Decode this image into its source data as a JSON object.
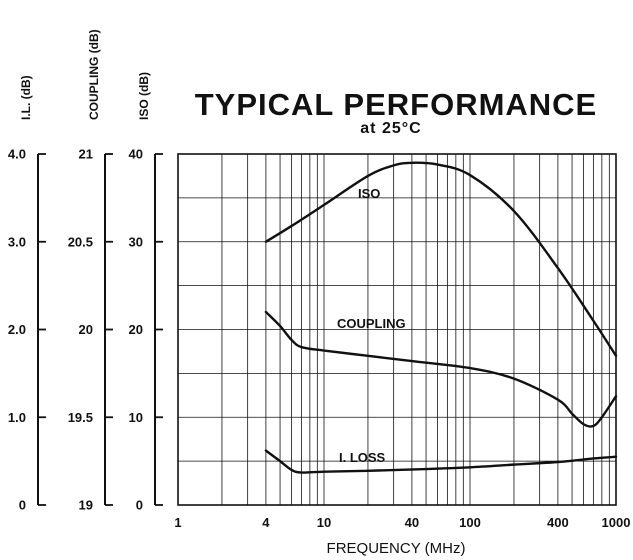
{
  "chart_data": {
    "type": "line",
    "title": "TYPICAL PERFORMANCE",
    "subtitle": "at 25°C",
    "xlabel": "FREQUENCY (MHz)",
    "x_scale": "log",
    "xlim": [
      1,
      1000
    ],
    "x_ticks": [
      "1",
      "4",
      "10",
      "40",
      "100",
      "400",
      "1000"
    ],
    "grid": true,
    "y_axes": [
      {
        "label": "I.L. (dB)",
        "ticks": [
          "0",
          "1.0",
          "2.0",
          "3.0",
          "4.0"
        ],
        "range": [
          0,
          4
        ]
      },
      {
        "label": "COUPLING (dB)",
        "ticks": [
          "19",
          "19.5",
          "20",
          "20.5",
          "21"
        ],
        "range": [
          19,
          21
        ]
      },
      {
        "label": "ISO (dB)",
        "ticks": [
          "0",
          "10",
          "20",
          "30",
          "40"
        ],
        "range": [
          0,
          40
        ]
      }
    ],
    "series": [
      {
        "name": "ISO",
        "axis": "ISO (dB)",
        "x": [
          4,
          6,
          10,
          20,
          30,
          40,
          60,
          100,
          200,
          400,
          700,
          1000
        ],
        "y": [
          30,
          31.8,
          34.2,
          37.5,
          38.7,
          39,
          38.8,
          37.6,
          33.5,
          27,
          21,
          17
        ]
      },
      {
        "name": "COUPLING",
        "axis": "COUPLING (dB)",
        "x": [
          4,
          5,
          6,
          7,
          10,
          20,
          40,
          100,
          200,
          400,
          500,
          600,
          700,
          800,
          1000
        ],
        "y": [
          20.1,
          20.02,
          19.94,
          19.9,
          19.88,
          19.85,
          19.82,
          19.78,
          19.72,
          19.6,
          19.52,
          19.46,
          19.45,
          19.5,
          19.62
        ]
      },
      {
        "name": "I. LOSS",
        "axis": "I.L. (dB)",
        "x": [
          4,
          5,
          6,
          7,
          10,
          20,
          50,
          100,
          200,
          400,
          700,
          1000
        ],
        "y": [
          0.62,
          0.5,
          0.4,
          0.37,
          0.38,
          0.39,
          0.41,
          0.43,
          0.46,
          0.49,
          0.53,
          0.55
        ]
      }
    ]
  }
}
